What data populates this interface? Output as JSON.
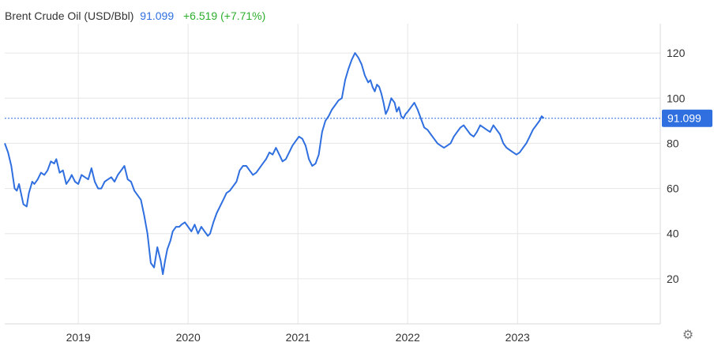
{
  "header": {
    "title": "Brent Crude Oil (USD/Bbl)",
    "price": "91.099",
    "change": "+6.519 (+7.71%)"
  },
  "colors": {
    "line": "#2f6fe0",
    "change_positive": "#2cae2c",
    "grid": "#e6e6e6",
    "price_tag_bg": "#2f6fe0"
  },
  "icons": {
    "settings": "gear-icon"
  },
  "chart_data": {
    "type": "line",
    "title": "Brent Crude Oil (USD/Bbl)",
    "xlabel": "",
    "ylabel": "",
    "y_ticks": [
      20,
      40,
      60,
      80,
      100,
      120
    ],
    "y_tick_labels": [
      "20",
      "40",
      "60",
      "80",
      "100",
      "120"
    ],
    "x_ticks": [
      2019,
      2020,
      2021,
      2022,
      2023
    ],
    "x_tick_labels": [
      "2019",
      "2020",
      "2021",
      "2022",
      "2023"
    ],
    "xlim": [
      2018.33,
      2024.3
    ],
    "ylim": [
      0,
      133
    ],
    "grid": true,
    "y_axis_position": "right",
    "last_value": 91.099,
    "last_value_label": "91.099",
    "series": [
      {
        "x": [
          2018.33,
          2018.36,
          2018.39,
          2018.42,
          2018.44,
          2018.46,
          2018.5,
          2018.53,
          2018.55,
          2018.58,
          2018.6,
          2018.63,
          2018.66,
          2018.69,
          2018.72,
          2018.75,
          2018.78,
          2018.8,
          2018.83,
          2018.86,
          2018.89,
          2018.92,
          2018.94,
          2018.97,
          2019.0,
          2019.03,
          2019.06,
          2019.09,
          2019.12,
          2019.15,
          2019.18,
          2019.21,
          2019.24,
          2019.27,
          2019.3,
          2019.33,
          2019.36,
          2019.39,
          2019.42,
          2019.45,
          2019.48,
          2019.51,
          2019.54,
          2019.57,
          2019.6,
          2019.63,
          2019.66,
          2019.69,
          2019.72,
          2019.75,
          2019.77,
          2019.79,
          2019.81,
          2019.84,
          2019.86,
          2019.89,
          2019.92,
          2019.94,
          2019.97,
          2020.0,
          2020.03,
          2020.06,
          2020.09,
          2020.12,
          2020.15,
          2020.18,
          2020.2,
          2020.23,
          2020.26,
          2020.29,
          2020.32,
          2020.35,
          2020.38,
          2020.41,
          2020.44,
          2020.47,
          2020.5,
          2020.53,
          2020.56,
          2020.59,
          2020.62,
          2020.65,
          2020.68,
          2020.71,
          2020.74,
          2020.77,
          2020.8,
          2020.83,
          2020.86,
          2020.89,
          2020.92,
          2020.95,
          2020.98,
          2021.01,
          2021.04,
          2021.07,
          2021.1,
          2021.13,
          2021.16,
          2021.19,
          2021.22,
          2021.25,
          2021.28,
          2021.31,
          2021.34,
          2021.37,
          2021.4,
          2021.43,
          2021.46,
          2021.49,
          2021.52,
          2021.55,
          2021.58,
          2021.61,
          2021.64,
          2021.66,
          2021.68,
          2021.7,
          2021.72,
          2021.74,
          2021.76,
          2021.78,
          2021.8,
          2021.82,
          2021.85,
          2021.88,
          2021.9,
          2021.92,
          2021.94,
          2021.96,
          2021.98,
          2022.0,
          2022.03,
          2022.06,
          2022.09,
          2022.12,
          2022.15,
          2022.18,
          2022.21,
          2022.24,
          2022.27,
          2022.3,
          2022.33,
          2022.36,
          2022.39,
          2022.42,
          2022.45,
          2022.48,
          2022.51,
          2022.54,
          2022.57,
          2022.6,
          2022.63,
          2022.66,
          2022.69,
          2022.72,
          2022.75,
          2022.78,
          2022.81,
          2022.84,
          2022.87,
          2022.9,
          2022.93,
          2022.96,
          2022.99,
          2023.02,
          2023.05,
          2023.08,
          2023.11,
          2023.14,
          2023.17,
          2023.2,
          2023.22,
          2023.24
        ],
        "y": [
          80,
          76,
          70,
          60,
          59,
          62,
          53,
          52,
          58,
          63,
          62,
          64,
          67,
          66,
          68,
          72,
          71,
          73,
          67,
          68,
          62,
          64,
          66,
          63,
          62,
          66,
          65,
          64,
          69,
          63,
          60,
          60,
          63,
          64,
          65,
          63,
          66,
          68,
          70,
          64,
          63,
          59,
          57,
          55,
          48,
          40,
          27,
          25,
          34,
          28,
          22,
          28,
          33,
          37,
          41,
          43,
          43,
          44,
          45,
          43,
          41,
          44,
          40,
          43,
          41,
          39,
          40,
          45,
          49,
          52,
          55,
          58,
          59,
          61,
          63,
          68,
          70,
          70,
          68,
          66,
          67,
          69,
          71,
          73,
          76,
          75,
          78,
          75,
          72,
          73,
          76,
          79,
          81,
          83,
          82,
          79,
          73,
          70,
          71,
          75,
          85,
          90,
          92,
          95,
          97,
          99,
          100,
          108,
          113,
          117,
          120,
          118,
          115,
          110,
          107,
          108,
          105,
          103,
          106,
          105,
          102,
          98,
          93,
          95,
          100,
          98,
          94,
          96,
          92,
          91,
          93,
          94,
          96,
          98,
          95,
          91,
          87,
          86,
          84,
          82,
          80,
          79,
          78,
          79,
          80,
          83,
          85,
          87,
          88,
          86,
          84,
          83,
          85,
          88,
          87,
          86,
          85,
          88,
          86,
          84,
          80,
          78,
          77,
          76,
          75,
          76,
          78,
          80,
          83,
          86,
          88,
          90,
          92,
          91.1
        ],
        "name": ""
      }
    ]
  }
}
